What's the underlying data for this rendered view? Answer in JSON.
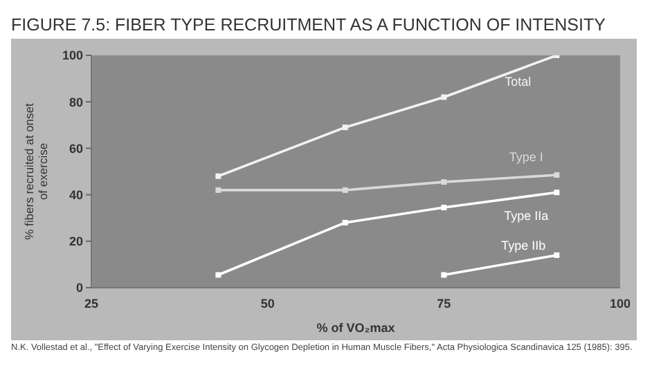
{
  "chart_data": {
    "type": "line",
    "title": "FIGURE 7.5: FIBER TYPE RECRUITMENT AS A FUNCTION OF INTENSITY",
    "xlabel": "% of VO₂max",
    "ylabel": "% fibers recruited at onset of exercise",
    "annotations": [
      "N.K. Vollestad et al., \"Effect of Varying Exercise Intensity on Glycogen Depletion in Human Muscle Fibers,\" Acta Physiologica Scandinavica 125 (1985): 395."
    ],
    "series": [
      {
        "name": "Total",
        "color": "#f2f2f2",
        "x": [
          43,
          61,
          75,
          91
        ],
        "values": [
          48,
          69,
          82,
          100
        ]
      },
      {
        "name": "Type I",
        "color": "#d9d9d9",
        "x": [
          43,
          61,
          75,
          91
        ],
        "values": [
          42,
          42,
          45.5,
          48.5
        ]
      },
      {
        "name": "Type IIa",
        "color": "#ffffff",
        "x": [
          43,
          61,
          75,
          91
        ],
        "values": [
          5.5,
          28,
          34.5,
          41
        ]
      },
      {
        "name": "Type IIb",
        "color": "#ffffff",
        "x": [
          75,
          91
        ],
        "values": [
          5.5,
          14
        ]
      }
    ],
    "xlim": [
      25,
      100
    ],
    "xticks": [
      25,
      50,
      75,
      100
    ],
    "ylim": [
      0,
      100
    ],
    "yticks": [
      0,
      20,
      40,
      60,
      80,
      100
    ],
    "grid": false,
    "legend": false,
    "marker": "square",
    "line_style": "solid"
  }
}
